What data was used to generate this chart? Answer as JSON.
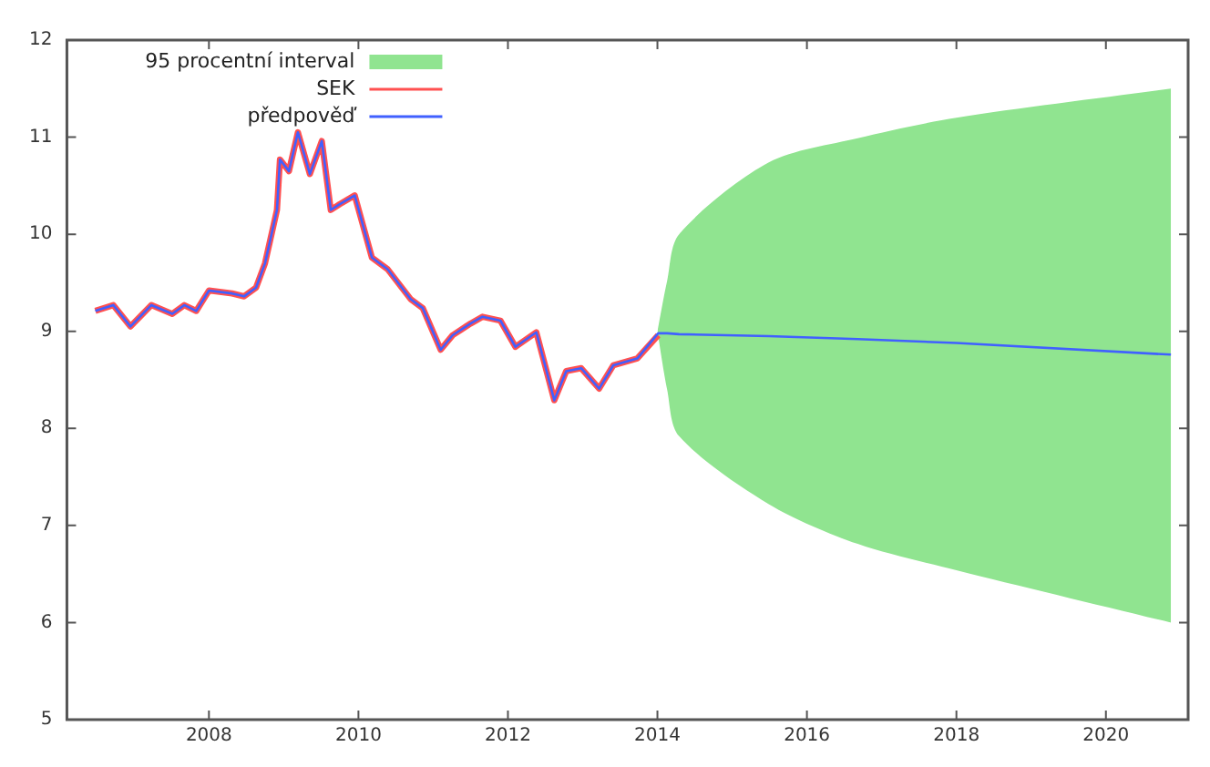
{
  "chart_data": {
    "type": "line",
    "xlim": [
      2006.1,
      2021.1
    ],
    "xticks": [
      2008,
      2010,
      2012,
      2014,
      2016,
      2018,
      2020
    ],
    "ylim": [
      5,
      12
    ],
    "yticks": [
      5,
      6,
      7,
      8,
      9,
      10,
      11,
      12
    ],
    "grid": false,
    "legend": "top left",
    "series": [
      {
        "name": "95 procentní interval",
        "type": "area",
        "color": "#90e490",
        "x": [
          2014,
          2014.13,
          2014.29,
          2015.49,
          2016.68,
          2018,
          2020.87
        ],
        "values": [
          null,
          null,
          null,
          null,
          null,
          null,
          null
        ],
        "lower": [
          9.0,
          8.4,
          7.92,
          7.22,
          6.81,
          6.54,
          6.0
        ],
        "upper": [
          9.0,
          9.52,
          10.0,
          10.74,
          10.99,
          11.2,
          11.5
        ]
      },
      {
        "name": "SEK",
        "color": "#ff5050",
        "x": [
          2006.48,
          2006.72,
          2006.95,
          2007.23,
          2007.51,
          2007.67,
          2007.83,
          2008.0,
          2008.31,
          2008.47,
          2008.63,
          2008.75,
          2008.91,
          2008.95,
          2009.07,
          2009.19,
          2009.35,
          2009.51,
          2009.63,
          2009.75,
          2009.95,
          2010.18,
          2010.39,
          2010.7,
          2010.86,
          2011.1,
          2011.26,
          2011.5,
          2011.66,
          2011.9,
          2012.1,
          2012.38,
          2012.62,
          2012.78,
          2012.98,
          2013.22,
          2013.41,
          2013.73,
          2014.01
        ],
        "values": [
          9.21,
          9.27,
          9.05,
          9.27,
          9.18,
          9.27,
          9.21,
          9.42,
          9.39,
          9.36,
          9.45,
          9.7,
          10.25,
          10.77,
          10.65,
          11.05,
          10.62,
          10.96,
          10.25,
          10.31,
          10.4,
          9.76,
          9.64,
          9.33,
          9.24,
          8.81,
          8.96,
          9.08,
          9.15,
          9.11,
          8.84,
          8.99,
          8.29,
          8.59,
          8.62,
          8.41,
          8.65,
          8.72,
          8.96
        ]
      },
      {
        "name": "předpověď",
        "color": "#4060ff",
        "x": [
          2006.48,
          2006.72,
          2006.95,
          2007.23,
          2007.51,
          2007.67,
          2007.83,
          2008.0,
          2008.31,
          2008.47,
          2008.63,
          2008.75,
          2008.91,
          2008.95,
          2009.07,
          2009.19,
          2009.35,
          2009.51,
          2009.63,
          2009.75,
          2009.95,
          2010.18,
          2010.39,
          2010.7,
          2010.86,
          2011.1,
          2011.26,
          2011.5,
          2011.66,
          2011.9,
          2012.1,
          2012.38,
          2012.62,
          2012.78,
          2012.98,
          2013.22,
          2013.41,
          2013.73,
          2014.01,
          2014.13,
          2014.29,
          2015.49,
          2016.68,
          2018,
          2020.87
        ],
        "values": [
          9.21,
          9.27,
          9.05,
          9.27,
          9.18,
          9.27,
          9.21,
          9.42,
          9.39,
          9.36,
          9.45,
          9.7,
          10.25,
          10.77,
          10.65,
          11.05,
          10.62,
          10.96,
          10.25,
          10.31,
          10.4,
          9.76,
          9.64,
          9.33,
          9.24,
          8.81,
          8.96,
          9.08,
          9.15,
          9.11,
          8.84,
          8.99,
          8.29,
          8.59,
          8.62,
          8.41,
          8.65,
          8.72,
          8.98,
          8.98,
          8.97,
          8.95,
          8.92,
          8.88,
          8.76
        ]
      }
    ]
  }
}
